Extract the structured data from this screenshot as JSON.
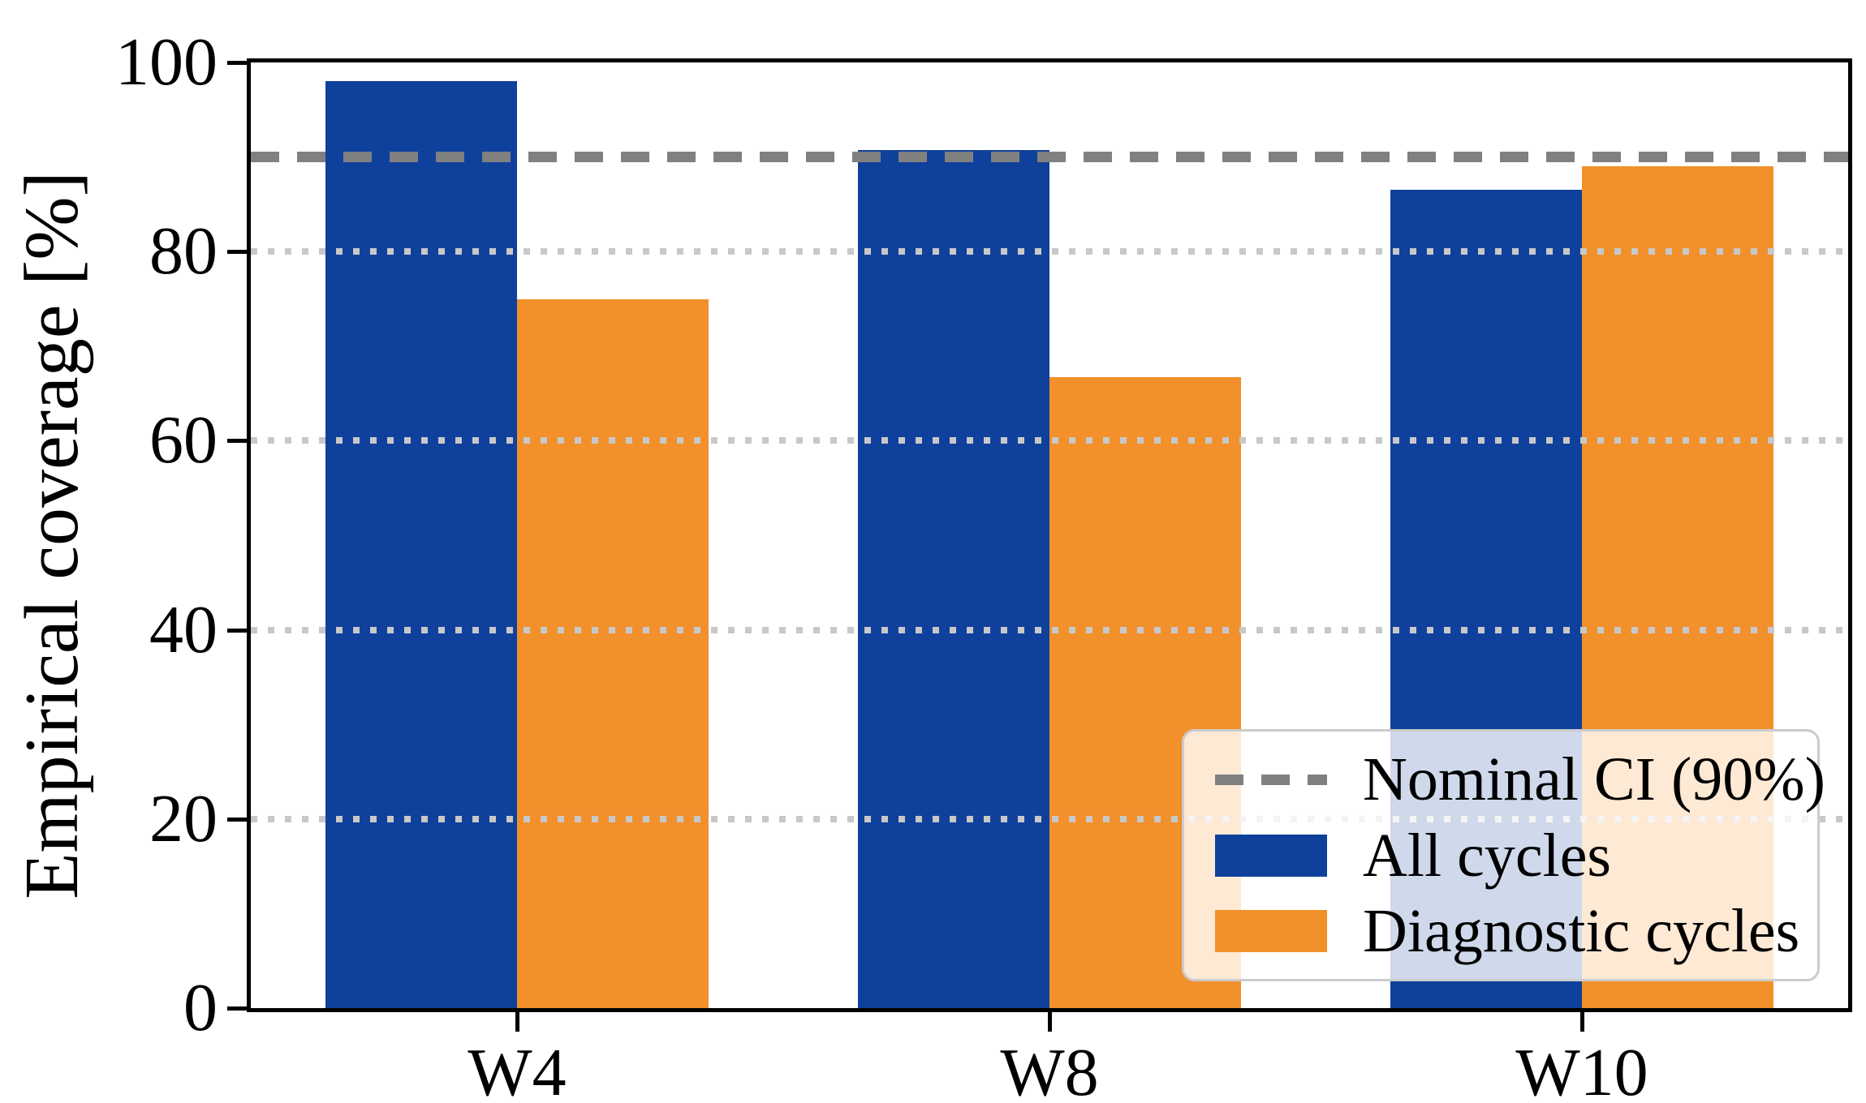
{
  "chart_data": {
    "type": "bar",
    "title": "",
    "xlabel": "",
    "ylabel": "Empirical coverage [%]",
    "categories": [
      "W4",
      "W8",
      "W10"
    ],
    "series": [
      {
        "name": "All cycles",
        "color": "#0f419c",
        "values": [
          98,
          90.7,
          86.5
        ]
      },
      {
        "name": "Diagnostic cycles",
        "color": "#f2902c",
        "values": [
          75,
          66.7,
          89
        ]
      }
    ],
    "reference_line": {
      "label": "Nominal CI (90%)",
      "value": 90,
      "color": "#808080",
      "style": "dashed"
    },
    "ylim": [
      0,
      100
    ],
    "yticks": [
      0,
      20,
      40,
      60,
      80,
      100
    ],
    "grid": "horizontal dotted gridlines at 20/40/60/80, drawn above bars",
    "gridline_color": "#c8c8c8",
    "legend_position": "lower right",
    "legend_background": "rgba(255,255,255,0.8)"
  }
}
